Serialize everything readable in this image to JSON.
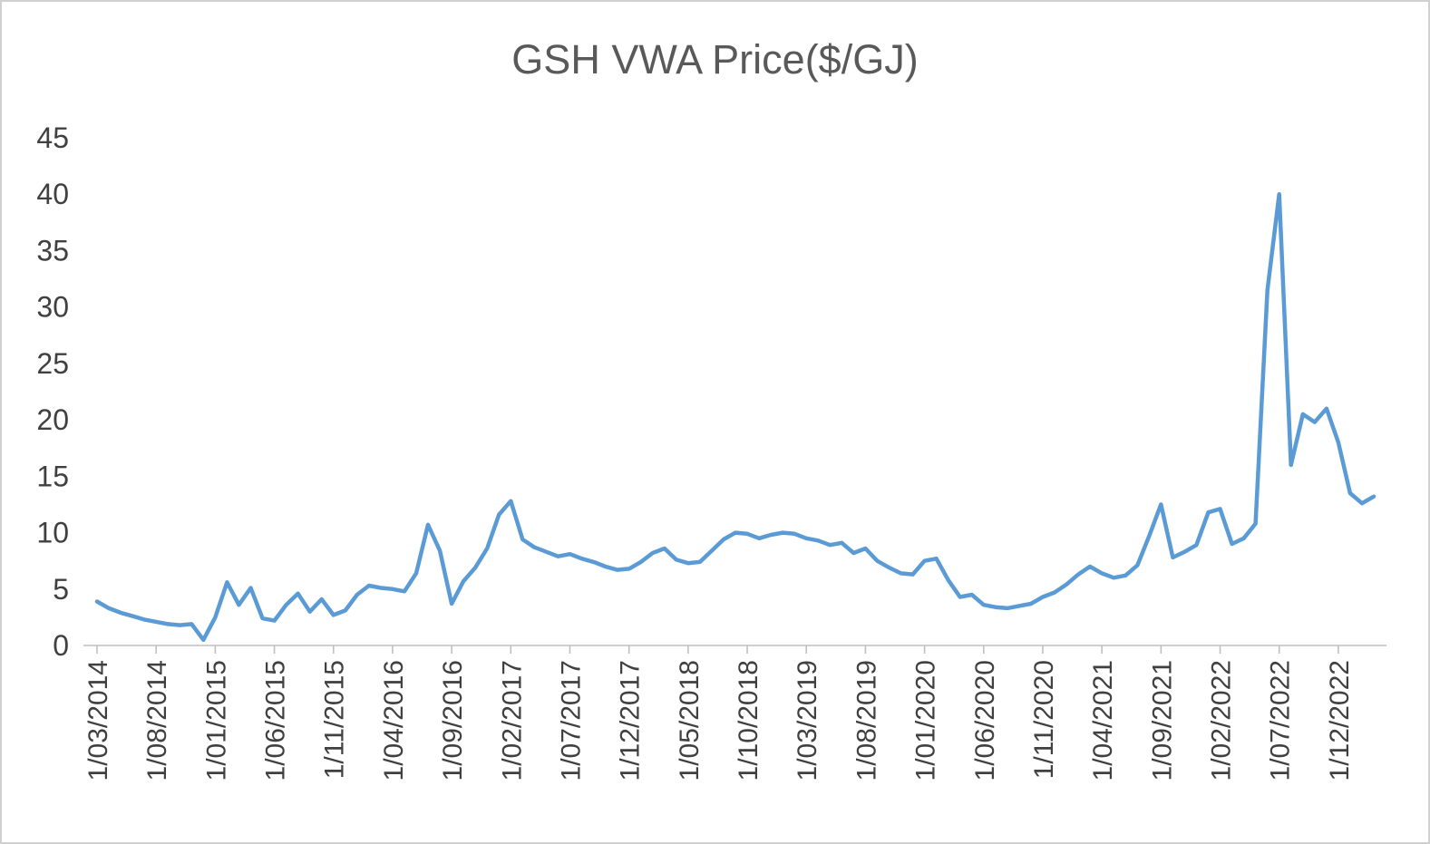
{
  "chart_data": {
    "type": "line",
    "title": "GSH VWA Price($/GJ)",
    "xlabel": "",
    "ylabel": "",
    "legend": "none",
    "grid": "off",
    "line_color": "#5b9bd5",
    "axis_color": "#bfbfbf",
    "tick_text_color": "#404040",
    "title_color": "#595959",
    "ylim": [
      0,
      45
    ],
    "y_ticks": [
      0,
      5,
      10,
      15,
      20,
      25,
      30,
      35,
      40,
      45
    ],
    "x_start": "1/03/2014",
    "x_interval": "monthly",
    "x_label_every": 5,
    "x_tick_labels": [
      "1/03/2014",
      "1/08/2014",
      "1/01/2015",
      "1/06/2015",
      "1/11/2015",
      "1/04/2016",
      "1/09/2016",
      "1/02/2017",
      "1/07/2017",
      "1/12/2017",
      "1/05/2018",
      "1/10/2018",
      "1/03/2019",
      "1/08/2019",
      "1/01/2020",
      "1/06/2020",
      "1/11/2020",
      "1/04/2021",
      "1/09/2021",
      "1/02/2022",
      "1/07/2022",
      "1/12/2022"
    ],
    "values": [
      3.9,
      3.3,
      2.9,
      2.6,
      2.3,
      2.1,
      1.9,
      1.8,
      1.9,
      0.5,
      2.5,
      5.6,
      3.6,
      5.1,
      2.4,
      2.2,
      3.6,
      4.6,
      3.0,
      4.1,
      2.7,
      3.1,
      4.5,
      5.3,
      5.1,
      5.0,
      4.8,
      6.4,
      10.7,
      8.4,
      3.7,
      5.7,
      6.9,
      8.6,
      11.6,
      12.8,
      9.4,
      8.7,
      8.3,
      7.9,
      8.1,
      7.7,
      7.4,
      7.0,
      6.7,
      6.8,
      7.4,
      8.2,
      8.6,
      7.6,
      7.3,
      7.4,
      8.4,
      9.4,
      10.0,
      9.9,
      9.5,
      9.8,
      10.0,
      9.9,
      9.5,
      9.3,
      8.9,
      9.1,
      8.2,
      8.6,
      7.5,
      6.9,
      6.4,
      6.3,
      7.5,
      7.7,
      5.8,
      4.3,
      4.5,
      3.6,
      3.4,
      3.3,
      3.5,
      3.7,
      4.3,
      4.7,
      5.4,
      6.3,
      7.0,
      6.4,
      6.0,
      6.2,
      7.1,
      9.7,
      12.5,
      7.8,
      8.3,
      8.9,
      11.8,
      12.1,
      9.0,
      9.5,
      10.8,
      31.5,
      40.0,
      16.0,
      20.5,
      19.8,
      21.0,
      18.0,
      13.5,
      12.6,
      13.2
    ]
  }
}
